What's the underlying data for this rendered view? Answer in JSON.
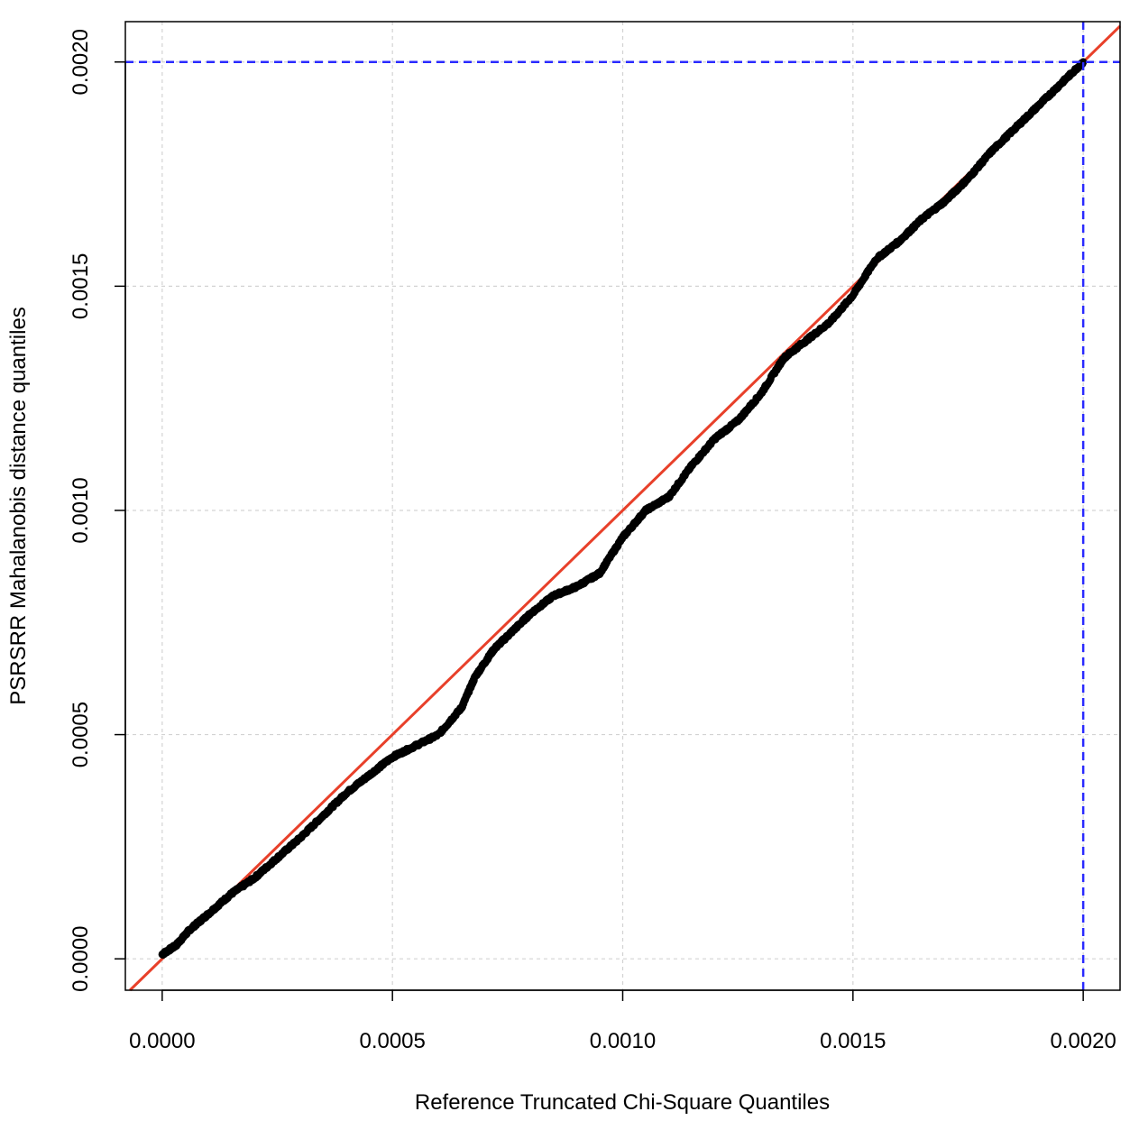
{
  "chart_data": {
    "type": "scatter",
    "title": "",
    "xlabel": "Reference Truncated Chi-Square Quantiles",
    "ylabel": "PSRSRR Mahalanobis distance quantiles",
    "xlim": [
      -8e-05,
      0.00208
    ],
    "ylim": [
      -7e-05,
      0.00209
    ],
    "x_ticks": [
      0.0,
      0.0005,
      0.001,
      0.0015,
      0.002
    ],
    "x_tick_labels": [
      "0.0000",
      "0.0005",
      "0.0010",
      "0.0015",
      "0.0020"
    ],
    "y_ticks": [
      0.0,
      0.0005,
      0.001,
      0.0015,
      0.002
    ],
    "y_tick_labels": [
      "0.0000",
      "0.0005",
      "0.0010",
      "0.0015",
      "0.0020"
    ],
    "grid": true,
    "reference_line": {
      "kind": "identity",
      "slope": 1,
      "intercept": 0,
      "color": "#e8402a"
    },
    "cutoff_lines": {
      "x": 0.002,
      "y": 0.002,
      "color": "#2a2aff",
      "style": "dashed"
    },
    "points_color": "#000000",
    "curve": [
      [
        0.0,
        1e-05
      ],
      [
        3e-05,
        3e-05
      ],
      [
        6e-05,
        6.5e-05
      ],
      [
        0.0001,
        0.0001
      ],
      [
        0.00015,
        0.000145
      ],
      [
        0.0002,
        0.00018
      ],
      [
        0.00025,
        0.000225
      ],
      [
        0.0003,
        0.00027
      ],
      [
        0.00035,
        0.00032
      ],
      [
        0.0004,
        0.00037
      ],
      [
        0.00045,
        0.00041
      ],
      [
        0.0005,
        0.00045
      ],
      [
        0.00055,
        0.000475
      ],
      [
        0.0006,
        0.0005
      ],
      [
        0.00065,
        0.00056
      ],
      [
        0.00068,
        0.00063
      ],
      [
        0.00072,
        0.00069
      ],
      [
        0.00076,
        0.00073
      ],
      [
        0.0008,
        0.00077
      ],
      [
        0.00085,
        0.00081
      ],
      [
        0.0009,
        0.00083
      ],
      [
        0.00095,
        0.00086
      ],
      [
        0.001,
        0.00094
      ],
      [
        0.00105,
        0.001
      ],
      [
        0.0011,
        0.00103
      ],
      [
        0.00115,
        0.0011
      ],
      [
        0.0012,
        0.00116
      ],
      [
        0.00125,
        0.0012
      ],
      [
        0.0013,
        0.00126
      ],
      [
        0.00135,
        0.00134
      ],
      [
        0.0014,
        0.00138
      ],
      [
        0.00145,
        0.00142
      ],
      [
        0.0015,
        0.00148
      ],
      [
        0.00155,
        0.00156
      ],
      [
        0.0016,
        0.0016
      ],
      [
        0.00165,
        0.00165
      ],
      [
        0.0017,
        0.00169
      ],
      [
        0.00175,
        0.00174
      ],
      [
        0.0018,
        0.0018
      ],
      [
        0.00185,
        0.00185
      ],
      [
        0.0019,
        0.0019
      ],
      [
        0.00195,
        0.00195
      ],
      [
        0.002,
        0.002
      ]
    ]
  }
}
